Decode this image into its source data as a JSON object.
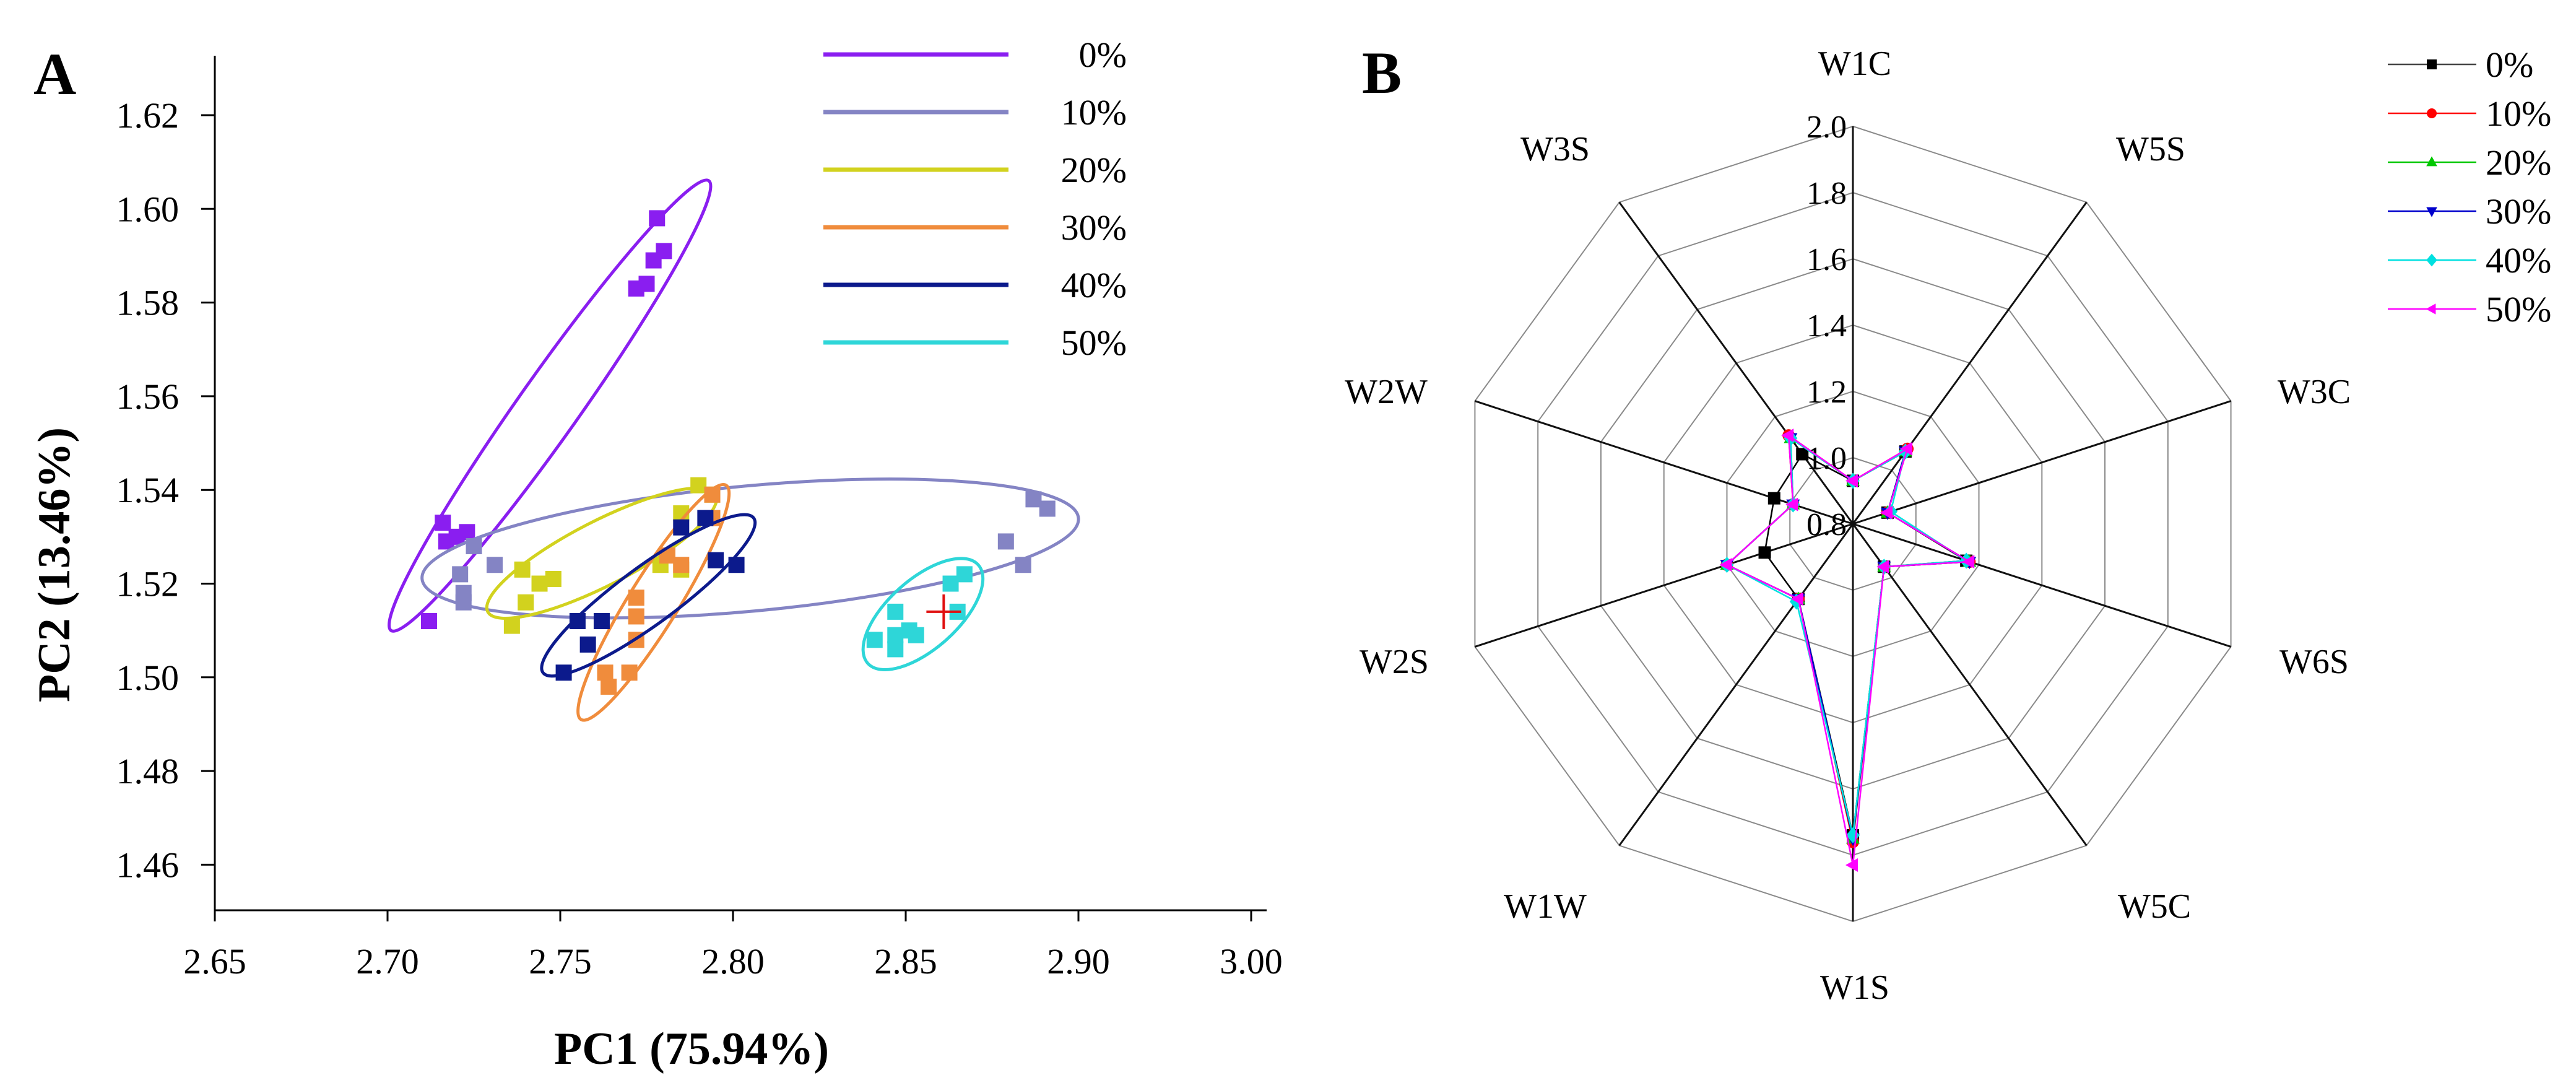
{
  "chart_data": [
    {
      "type": "scatter",
      "panel_label": "A",
      "title": "",
      "xlabel": "PC1  (75.94%)",
      "ylabel": "PC2  (13.46%)",
      "xlim": [
        2.65,
        3.0
      ],
      "ylim": [
        1.45,
        1.63
      ],
      "x_tick_labels": [
        "2.65",
        "2.70",
        "2.75",
        "2.80",
        "2.85",
        "2.90",
        "3.00"
      ],
      "y_ticks": [
        1.46,
        1.48,
        1.5,
        1.52,
        1.54,
        1.56,
        1.58,
        1.6,
        1.62
      ],
      "y_tick_labels": [
        "1.46",
        "1.48",
        "1.50",
        "1.52",
        "1.54",
        "1.56",
        "1.58",
        "1.60",
        "1.62"
      ],
      "grid": false,
      "legend_position": "top-right",
      "marker": "square",
      "series": [
        {
          "name": "0%",
          "color": "#8a1ef0",
          "points": [
            [
              2.716,
              1.533
            ],
            [
              2.717,
              1.529
            ],
            [
              2.72,
              1.53
            ],
            [
              2.723,
              1.531
            ],
            [
              2.712,
              1.512
            ],
            [
              2.778,
              1.598
            ],
            [
              2.78,
              1.591
            ],
            [
              2.777,
              1.589
            ],
            [
              2.775,
              1.584
            ],
            [
              2.772,
              1.583
            ]
          ],
          "ellipse": {
            "p1": [
              2.701,
              1.51
            ],
            "p2": [
              2.793,
              1.606
            ],
            "minor_ratio": 0.11
          }
        },
        {
          "name": "10%",
          "color": "#8484c4",
          "points": [
            [
              2.725,
              1.528
            ],
            [
              2.731,
              1.524
            ],
            [
              2.721,
              1.522
            ],
            [
              2.722,
              1.518
            ],
            [
              2.722,
              1.516
            ],
            [
              2.887,
              1.538
            ],
            [
              2.891,
              1.536
            ],
            [
              2.879,
              1.529
            ],
            [
              2.884,
              1.524
            ]
          ],
          "ellipse": {
            "p1": [
              2.71,
              1.521
            ],
            "p2": [
              2.9,
              1.534
            ],
            "minor_ratio": 0.19
          }
        },
        {
          "name": "20%",
          "color": "#d2d21e",
          "points": [
            [
              2.739,
              1.523
            ],
            [
              2.744,
              1.52
            ],
            [
              2.748,
              1.521
            ],
            [
              2.74,
              1.516
            ],
            [
              2.736,
              1.511
            ],
            [
              2.79,
              1.541
            ],
            [
              2.785,
              1.535
            ],
            [
              2.779,
              1.524
            ],
            [
              2.785,
              1.523
            ],
            [
              2.794,
              1.539
            ]
          ],
          "ellipse": {
            "p1": [
              2.729,
              1.514
            ],
            "p2": [
              2.795,
              1.539
            ],
            "minor_ratio": 0.25
          }
        },
        {
          "name": "30%",
          "color": "#f08c3c",
          "points": [
            [
              2.781,
              1.526
            ],
            [
              2.785,
              1.524
            ],
            [
              2.772,
              1.517
            ],
            [
              2.772,
              1.513
            ],
            [
              2.772,
              1.508
            ],
            [
              2.763,
              1.501
            ],
            [
              2.77,
              1.501
            ],
            [
              2.764,
              1.498
            ],
            [
              2.794,
              1.534
            ],
            [
              2.794,
              1.539
            ]
          ],
          "ellipse": {
            "p1": [
              2.756,
              1.491
            ],
            "p2": [
              2.798,
              1.541
            ],
            "minor_ratio": 0.18
          }
        },
        {
          "name": "40%",
          "color": "#0c1a8c",
          "points": [
            [
              2.785,
              1.532
            ],
            [
              2.792,
              1.534
            ],
            [
              2.795,
              1.525
            ],
            [
              2.801,
              1.524
            ],
            [
              2.755,
              1.512
            ],
            [
              2.762,
              1.512
            ],
            [
              2.758,
              1.507
            ],
            [
              2.751,
              1.501
            ]
          ],
          "ellipse": {
            "p1": [
              2.745,
              1.501
            ],
            "p2": [
              2.806,
              1.534
            ],
            "minor_ratio": 0.22
          }
        },
        {
          "name": "50%",
          "color": "#2ed6d8",
          "points": [
            [
              2.847,
              1.514
            ],
            [
              2.863,
              1.52
            ],
            [
              2.867,
              1.522
            ],
            [
              2.865,
              1.514
            ],
            [
              2.841,
              1.508
            ],
            [
              2.847,
              1.506
            ],
            [
              2.847,
              1.509
            ],
            [
              2.853,
              1.509
            ],
            [
              2.851,
              1.51
            ]
          ],
          "ellipse": {
            "p1": [
              2.839,
              1.503
            ],
            "p2": [
              2.871,
              1.524
            ],
            "minor_ratio": 0.47
          }
        }
      ],
      "annotations": [
        {
          "type": "cross",
          "color": "#e01010",
          "point": [
            2.861,
            1.514
          ]
        }
      ]
    },
    {
      "type": "radar",
      "panel_label": "B",
      "axes": [
        "W1C",
        "W5S",
        "W3C",
        "W6S",
        "W5C",
        "W1S",
        "W1W",
        "W2S",
        "W2W",
        "W3S"
      ],
      "rlim": [
        0.8,
        2.0
      ],
      "r_ticks": [
        0.8,
        1.0,
        1.2,
        1.4,
        1.6,
        1.8,
        2.0
      ],
      "r_tick_labels": [
        "0.8",
        "1.0",
        "1.2",
        "1.4",
        "1.6",
        "1.8",
        "2.0"
      ],
      "legend_position": "top-right",
      "series": [
        {
          "name": "0%",
          "color": "#000000",
          "marker": "square",
          "values": [
            0.93,
            1.07,
            0.91,
            1.16,
            0.96,
            1.74,
            1.08,
            1.08,
            1.05,
            1.06
          ]
        },
        {
          "name": "10%",
          "color": "#ff0000",
          "marker": "circle",
          "values": [
            0.93,
            1.08,
            0.91,
            1.17,
            0.96,
            1.76,
            1.08,
            1.2,
            0.99,
            1.13
          ]
        },
        {
          "name": "20%",
          "color": "#00c800",
          "marker": "triangle-up",
          "values": [
            0.93,
            1.07,
            0.91,
            1.17,
            0.96,
            1.75,
            1.08,
            1.2,
            0.99,
            1.12
          ]
        },
        {
          "name": "30%",
          "color": "#0000cc",
          "marker": "triangle-down",
          "values": [
            0.93,
            1.07,
            0.91,
            1.17,
            0.96,
            1.75,
            1.08,
            1.2,
            0.99,
            1.12
          ]
        },
        {
          "name": "40%",
          "color": "#00e0e0",
          "marker": "diamond",
          "values": [
            0.93,
            1.07,
            0.92,
            1.16,
            0.96,
            1.74,
            1.09,
            1.2,
            0.99,
            1.12
          ]
        },
        {
          "name": "50%",
          "color": "#ff00ff",
          "marker": "triangle-left",
          "values": [
            0.93,
            1.08,
            0.91,
            1.17,
            0.96,
            1.83,
            1.08,
            1.2,
            0.99,
            1.13
          ]
        }
      ]
    }
  ]
}
